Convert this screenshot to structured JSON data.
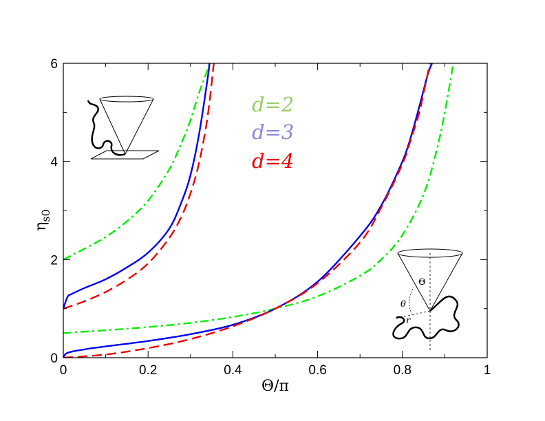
{
  "chart_data": {
    "type": "line",
    "title": "",
    "xlabel": "Θ/π",
    "ylabel": "η",
    "ylabel_sub": "s0",
    "xlim": [
      0,
      1
    ],
    "ylim": [
      0,
      6
    ],
    "x_ticks": [
      "0",
      "0.2",
      "0.4",
      "0.6",
      "0.8",
      "1"
    ],
    "y_ticks": [
      "0",
      "2",
      "4",
      "6"
    ],
    "grid": false,
    "legend_position": "top-center",
    "inset_top_left": "polymer attached to a cone apex lying on a plane",
    "inset_bottom_right": "polymer near a cone apex",
    "inset_labels": [
      "Θ",
      "θ",
      "r"
    ],
    "series": [
      {
        "name": "d=2",
        "color": "#00ee00",
        "dash": "dash-dot",
        "branches": [
          {
            "x": [
              0,
              0.05,
              0.1,
              0.15,
              0.2,
              0.25,
              0.28,
              0.3,
              0.32,
              0.34,
              0.345
            ],
            "y": [
              2.0,
              2.22,
              2.46,
              2.78,
              3.2,
              3.84,
              4.4,
              4.84,
              5.39,
              5.86,
              6.0
            ]
          },
          {
            "x": [
              0,
              0.1,
              0.2,
              0.3,
              0.4,
              0.5,
              0.6,
              0.7,
              0.75,
              0.8,
              0.85,
              0.88,
              0.9,
              0.92
            ],
            "y": [
              0.5,
              0.56,
              0.625,
              0.71,
              0.83,
              1.0,
              1.25,
              1.67,
              2.0,
              2.5,
              3.33,
              4.2,
              5.0,
              6.0
            ]
          }
        ]
      },
      {
        "name": "d=3",
        "color": "#0000ee",
        "dash": "solid",
        "branches": [
          {
            "x": [
              0,
              0.01,
              0.02,
              0.05,
              0.1,
              0.15,
              0.2,
              0.25,
              0.28,
              0.3,
              0.32,
              0.34,
              0.345
            ],
            "y": [
              1.0,
              1.24,
              1.3,
              1.42,
              1.6,
              1.84,
              2.14,
              2.63,
              3.2,
              3.72,
              4.54,
              5.66,
              6.0
            ]
          },
          {
            "x": [
              0,
              0.01,
              0.05,
              0.1,
              0.2,
              0.3,
              0.4,
              0.5,
              0.6,
              0.7,
              0.75,
              0.8,
              0.82,
              0.84,
              0.86,
              0.87
            ],
            "y": [
              0,
              0.1,
              0.17,
              0.23,
              0.34,
              0.48,
              0.67,
              1.0,
              1.55,
              2.48,
              3.1,
              4.0,
              4.5,
              5.12,
              5.78,
              6.0
            ]
          }
        ]
      },
      {
        "name": "d=4",
        "color": "#ee0000",
        "dash": "dashed",
        "branches": [
          {
            "x": [
              0,
              0.05,
              0.1,
              0.15,
              0.2,
              0.25,
              0.28,
              0.3,
              0.32,
              0.34,
              0.355
            ],
            "y": [
              1.0,
              1.15,
              1.34,
              1.59,
              1.92,
              2.44,
              2.9,
              3.35,
              3.96,
              4.88,
              6.0
            ]
          },
          {
            "x": [
              0,
              0.1,
              0.2,
              0.3,
              0.4,
              0.5,
              0.6,
              0.7,
              0.75,
              0.8,
              0.82,
              0.84,
              0.85,
              0.865
            ],
            "y": [
              0,
              0.065,
              0.195,
              0.38,
              0.64,
              1.0,
              1.52,
              2.35,
              3.06,
              3.95,
              4.45,
              5.0,
              5.4,
              6.0
            ]
          }
        ]
      }
    ]
  }
}
